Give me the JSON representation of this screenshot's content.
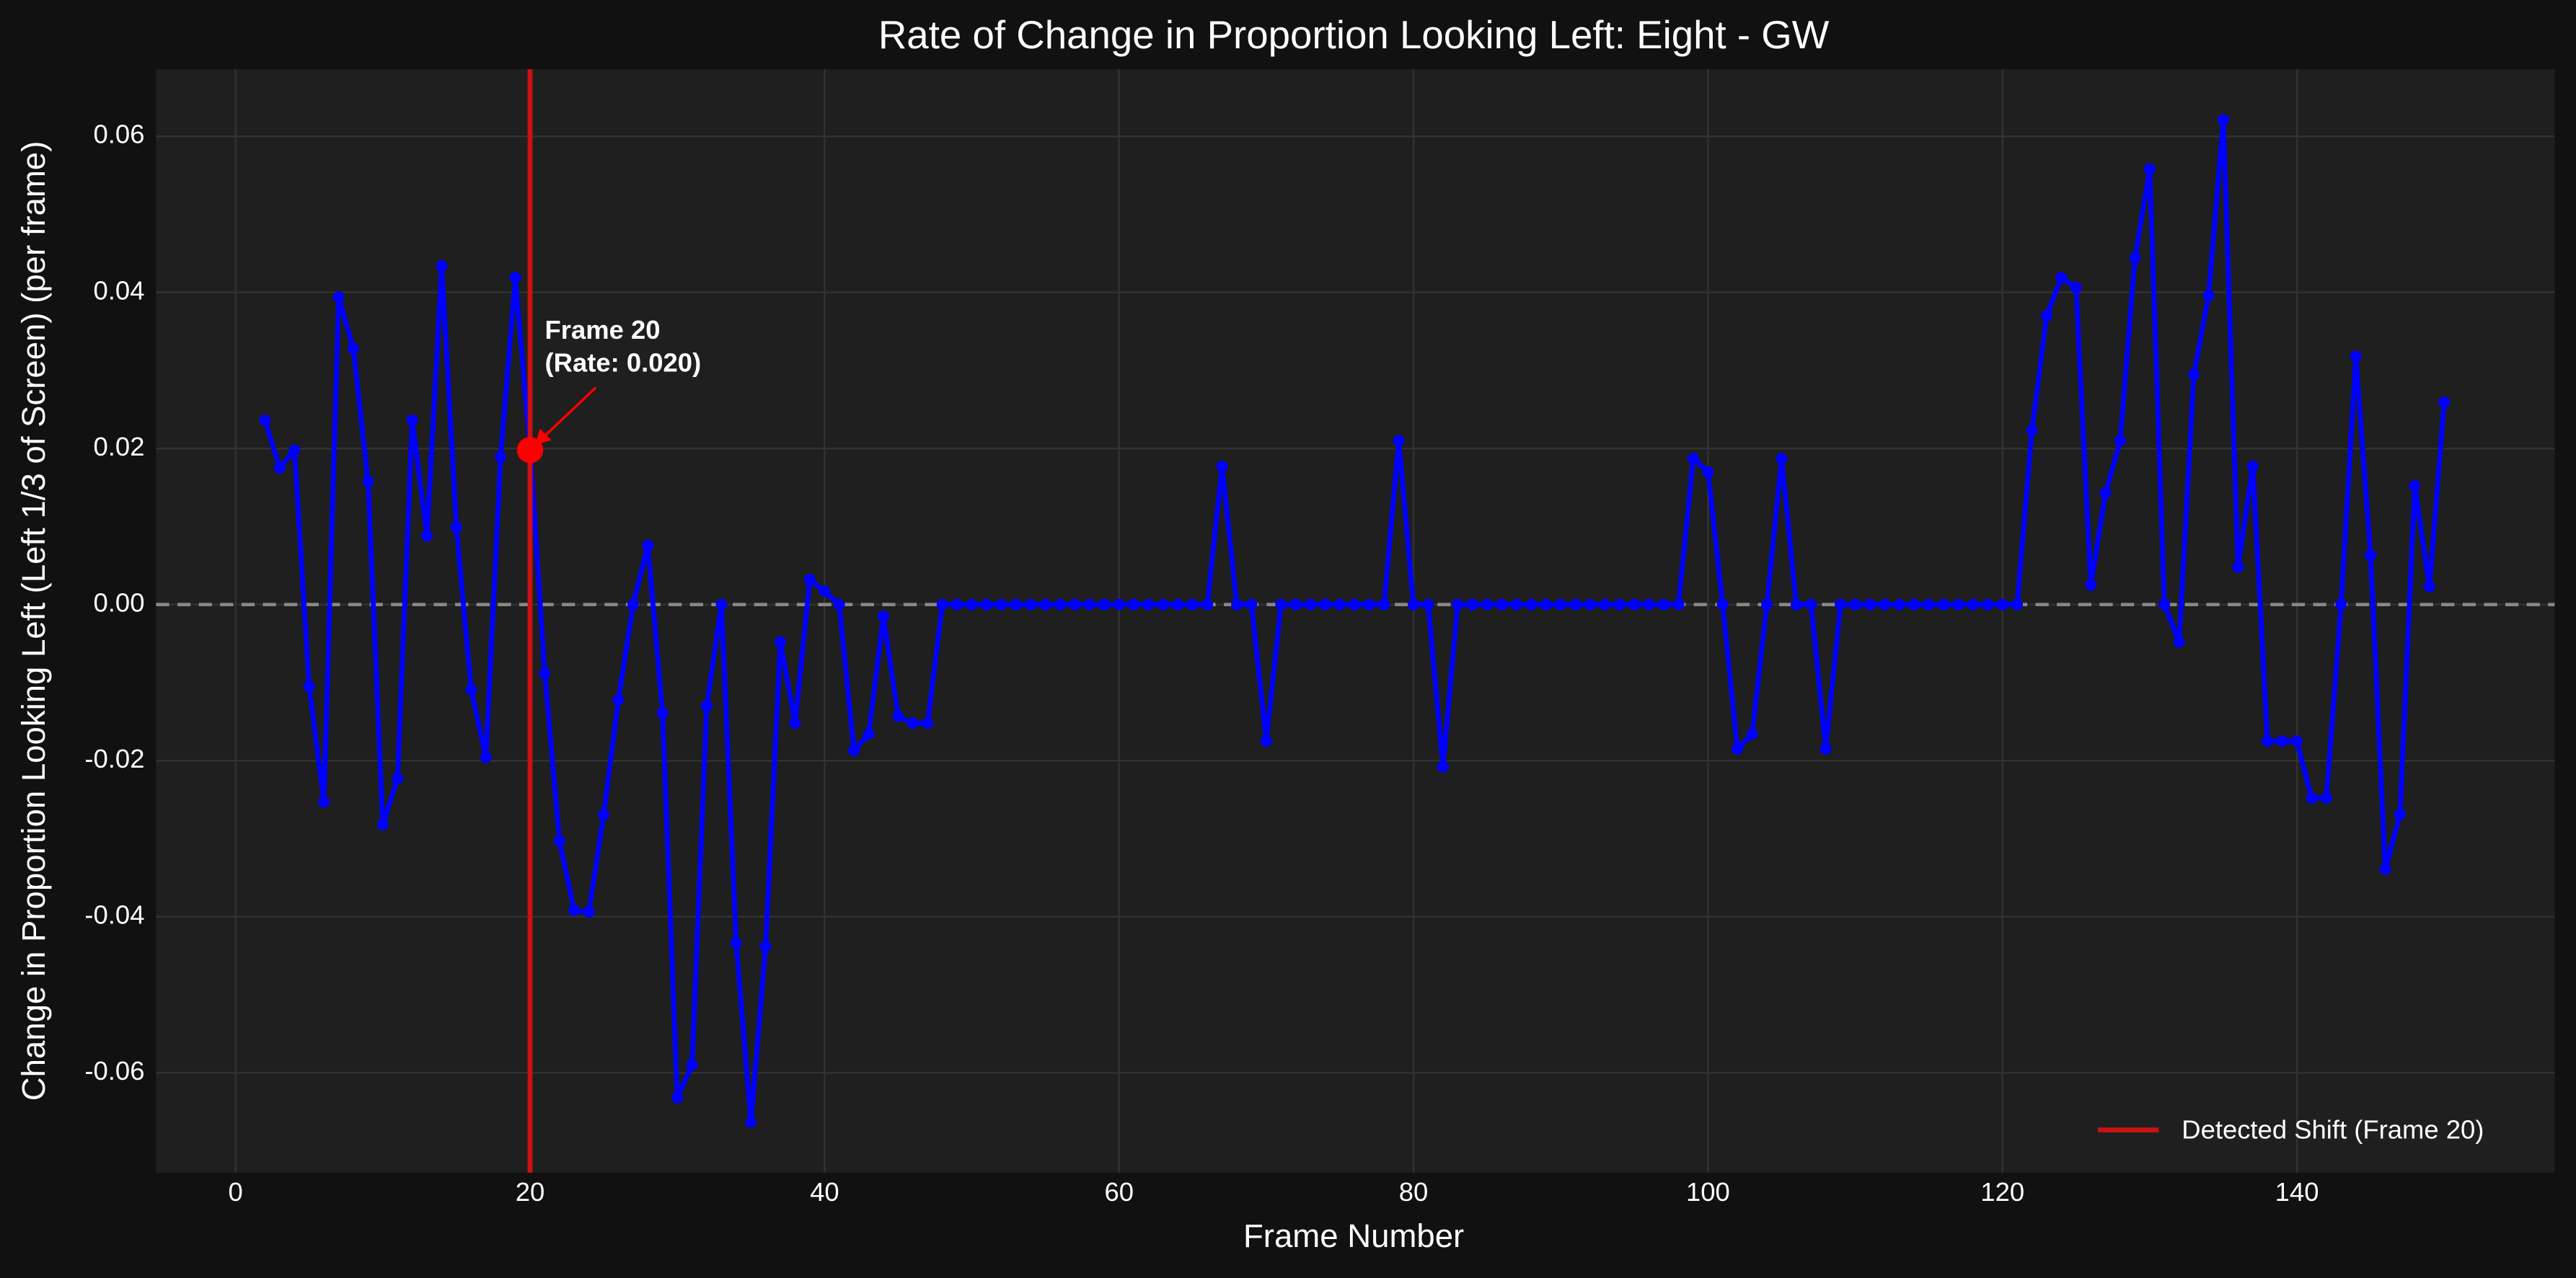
{
  "chart_data": {
    "type": "line",
    "title": "Rate of Change in Proportion Looking Left: Eight - GW",
    "x_label": "Frame Number",
    "y_label": "Change in Proportion Looking Left (Left 1/3 of Screen) (per frame)",
    "x": [
      2,
      3,
      4,
      5,
      6,
      7,
      8,
      9,
      10,
      11,
      12,
      13,
      14,
      15,
      16,
      17,
      18,
      19,
      20,
      21,
      22,
      23,
      24,
      25,
      26,
      27,
      28,
      29,
      30,
      31,
      32,
      33,
      34,
      35,
      36,
      37,
      38,
      39,
      40,
      41,
      42,
      43,
      44,
      45,
      46,
      47,
      48,
      49,
      50,
      51,
      52,
      53,
      54,
      55,
      56,
      57,
      58,
      59,
      60,
      61,
      62,
      63,
      64,
      65,
      66,
      67,
      68,
      69,
      70,
      71,
      72,
      73,
      74,
      75,
      76,
      77,
      78,
      79,
      80,
      81,
      82,
      83,
      84,
      85,
      86,
      87,
      88,
      89,
      90,
      91,
      92,
      93,
      94,
      95,
      96,
      97,
      98,
      99,
      100,
      101,
      102,
      103,
      104,
      105,
      106,
      107,
      108,
      109,
      110,
      111,
      112,
      113,
      114,
      115,
      116,
      117,
      118,
      119,
      120,
      121,
      122,
      123,
      124,
      125,
      126,
      127,
      128,
      129,
      130,
      131,
      132,
      133,
      134,
      135,
      136,
      137,
      138,
      139,
      140,
      141,
      142,
      143,
      144,
      145,
      146,
      147,
      148,
      149,
      150
    ],
    "values": [
      0.0236,
      0.0175,
      0.0198,
      -0.0105,
      -0.0253,
      0.0394,
      0.0328,
      0.0158,
      -0.0282,
      -0.0223,
      0.0236,
      0.0088,
      0.0434,
      0.0099,
      -0.0109,
      -0.0196,
      0.0189,
      0.0419,
      0.0198,
      -0.0088,
      -0.0303,
      -0.0392,
      -0.0394,
      -0.0269,
      -0.0122,
      0,
      0.0076,
      -0.0139,
      -0.0632,
      -0.059,
      -0.013,
      0,
      -0.0434,
      -0.0663,
      -0.0438,
      -0.0048,
      -0.0152,
      0.0032,
      0.0017,
      0,
      -0.0187,
      -0.0166,
      -0.0015,
      -0.0143,
      -0.0152,
      -0.0152,
      0,
      0,
      0,
      0,
      0,
      0,
      0,
      0,
      0,
      0,
      0,
      0,
      0,
      0,
      0,
      0,
      0,
      0,
      0,
      0.0177,
      0,
      0,
      -0.0175,
      0,
      0,
      0,
      0,
      0,
      0,
      0,
      0,
      0.021,
      0,
      0,
      -0.0208,
      0,
      0,
      0,
      0,
      0,
      0,
      0,
      0,
      0,
      0,
      0,
      0,
      0,
      0,
      0,
      0,
      0.0187,
      0.017,
      0,
      -0.0185,
      -0.0166,
      0,
      0.0187,
      0,
      0,
      -0.0185,
      0,
      0,
      0,
      0,
      0,
      0,
      0,
      0,
      0,
      0,
      0,
      0,
      0,
      0.0223,
      0.037,
      0.0419,
      0.0406,
      0.0025,
      0.0143,
      0.021,
      0.0444,
      0.0558,
      0,
      -0.0048,
      0.0295,
      0.0396,
      0.0621,
      0.0048,
      0.0177,
      -0.0175,
      -0.0175,
      -0.0175,
      -0.0248,
      -0.0248,
      0,
      0.0318,
      0.0063,
      -0.0339,
      -0.0269,
      0.0152,
      0.0023,
      0.0259
    ],
    "color": "#0000ff",
    "xlim": [
      -5.4,
      157.5
    ],
    "ylim": [
      -0.0728,
      0.0686
    ],
    "xticks": [
      0,
      20,
      40,
      60,
      80,
      100,
      120,
      140
    ],
    "yticks": [
      -0.06,
      -0.04,
      -0.02,
      {
        "value": 0,
        "label": "0.00"
      },
      0.02,
      0.04,
      0.06
    ],
    "grid": true,
    "hline_y": 0,
    "shift": {
      "x": 20,
      "label": "Detected Shift (Frame 20)",
      "color": "#cc1111",
      "marker_color": "#ff0000",
      "annotation": [
        "Frame 20",
        "(Rate: 0.020)"
      ]
    },
    "legend_position": "lower right"
  }
}
